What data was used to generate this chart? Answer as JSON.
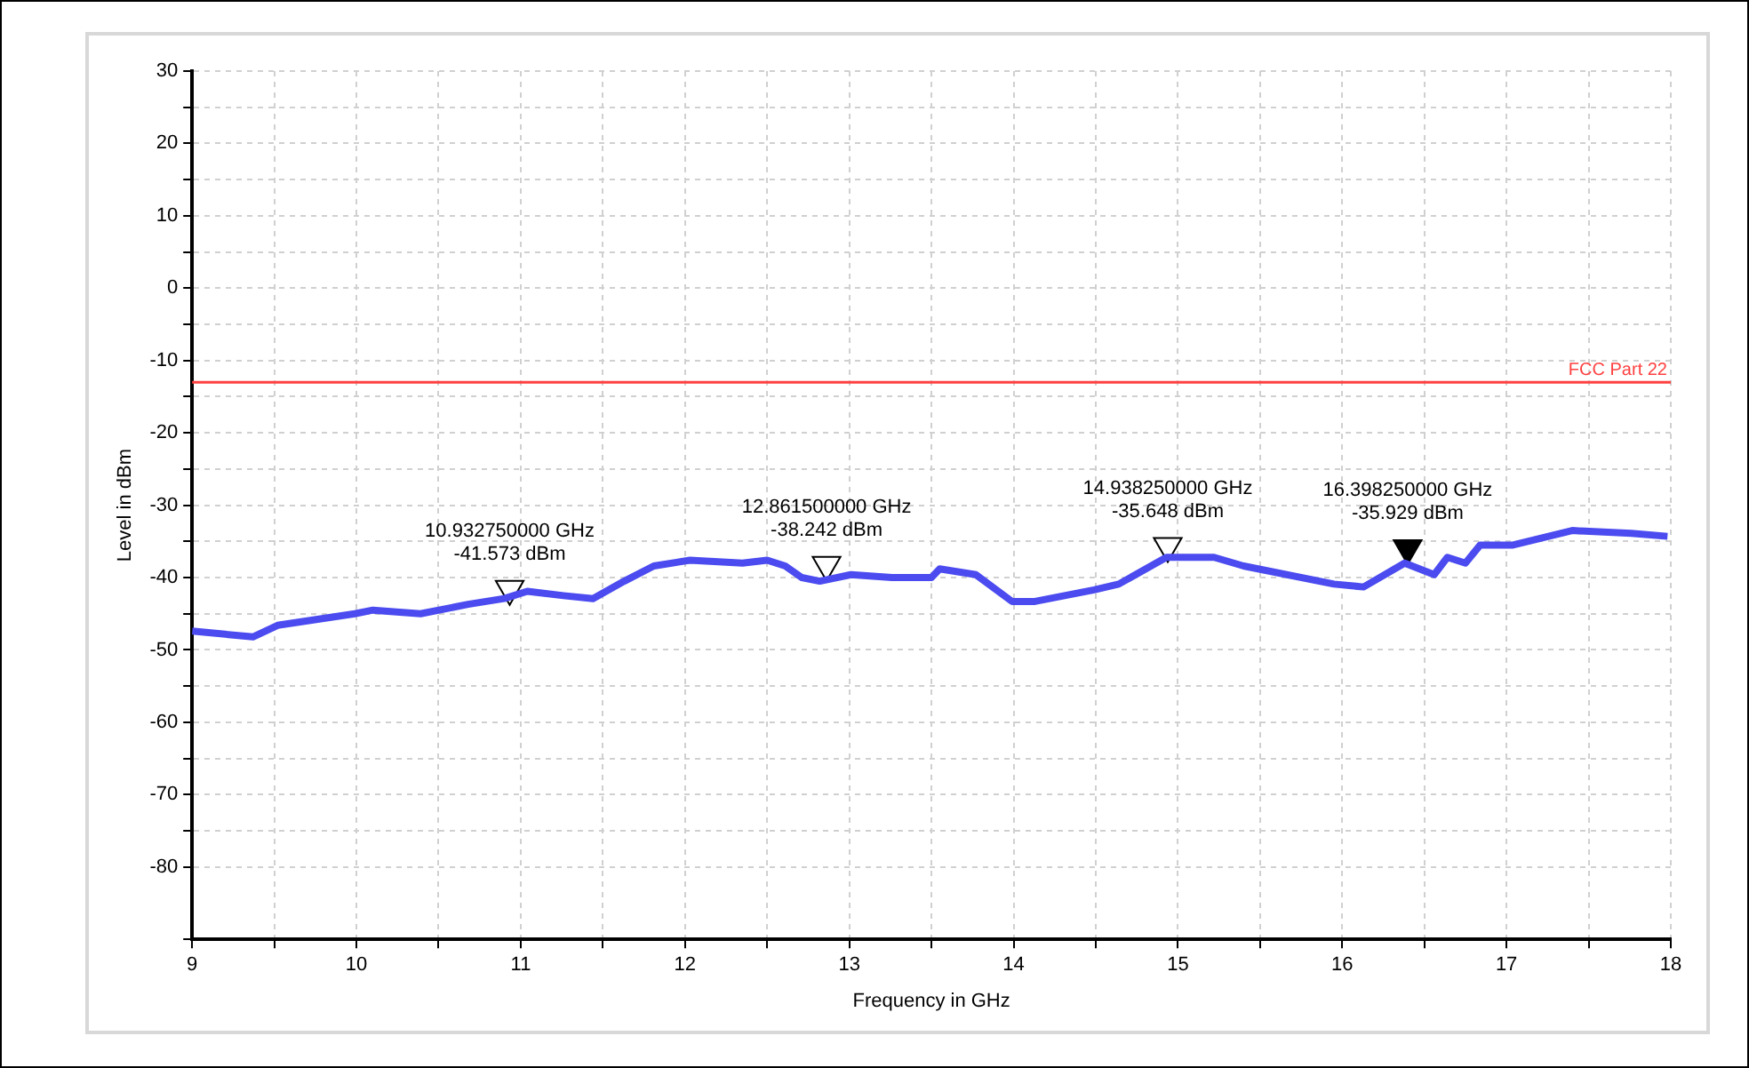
{
  "chart_data": {
    "type": "line",
    "xlabel": "Frequency in GHz",
    "ylabel": "Level in dBm",
    "xlim": [
      9,
      18
    ],
    "ylim": [
      -90,
      30
    ],
    "xticks": [
      9,
      {
        "value": 9.5,
        "label": null
      },
      10,
      {
        "value": 10.5,
        "label": null
      },
      11,
      {
        "value": 11.5,
        "label": null
      },
      12,
      {
        "value": 12.5,
        "label": null
      },
      13,
      {
        "value": 13.5,
        "label": null
      },
      14,
      {
        "value": 14.5,
        "label": null
      },
      15,
      {
        "value": 15.5,
        "label": null
      },
      16,
      {
        "value": 16.5,
        "label": null
      },
      17,
      {
        "value": 17.5,
        "label": null
      },
      18
    ],
    "yticks": [
      {
        "value": -90,
        "label": null
      },
      -80,
      {
        "value": -75,
        "label": null
      },
      -70,
      {
        "value": -65,
        "label": null
      },
      -60,
      {
        "value": -55,
        "label": null
      },
      -50,
      {
        "value": -45,
        "label": null
      },
      -40,
      {
        "value": -35,
        "label": null
      },
      -30,
      {
        "value": -25,
        "label": null
      },
      -20,
      {
        "value": -15,
        "label": null
      },
      -10,
      {
        "value": -5,
        "label": null
      },
      0,
      {
        "value": 5,
        "label": null
      },
      10,
      {
        "value": 15,
        "label": null
      },
      20,
      {
        "value": 25,
        "label": null
      },
      30
    ],
    "grid": true,
    "legend": false,
    "series": [
      {
        "color": "#4b4bf0",
        "marker": "none",
        "x": [
          9.0,
          9.37,
          9.52,
          9.99,
          10.1,
          10.39,
          10.68,
          10.9,
          11.04,
          11.26,
          11.44,
          11.63,
          11.81,
          12.03,
          12.35,
          12.5,
          12.61,
          12.71,
          12.82,
          13.01,
          13.26,
          13.5,
          13.55,
          13.77,
          13.99,
          14.13,
          14.49,
          14.64,
          14.93,
          15.22,
          15.4,
          15.95,
          16.13,
          16.38,
          16.56,
          16.64,
          16.75,
          16.84,
          17.04,
          17.4,
          17.76,
          17.98
        ],
        "values": [
          -47.4,
          -48.2,
          -46.6,
          -45.0,
          -44.5,
          -45.0,
          -43.7,
          -42.9,
          -41.9,
          -42.5,
          -42.9,
          -40.5,
          -38.4,
          -37.6,
          -38.0,
          -37.6,
          -38.4,
          -40.0,
          -40.5,
          -39.6,
          -40.0,
          -40.0,
          -38.8,
          -39.6,
          -43.3,
          -43.3,
          -41.7,
          -40.9,
          -37.2,
          -37.2,
          -38.4,
          -40.9,
          -41.3,
          -38.0,
          -39.6,
          -37.2,
          -38.0,
          -35.5,
          -35.5,
          -33.5,
          -33.9,
          -34.3
        ]
      },
      {
        "type": "scatter",
        "marker": "triangle",
        "x": [
          10.93275,
          12.8615,
          14.93825,
          16.39825
        ],
        "values": [
          -41.573,
          -38.242,
          -35.648,
          -35.929
        ],
        "colors": [
          "#ffffff",
          "#ffffff",
          "#ffffff",
          "#000000"
        ]
      }
    ],
    "ref_lines": [
      {
        "axis": "y",
        "value": -13,
        "label": "FCC Part 22",
        "color": "#ff4040"
      }
    ],
    "annotations": [
      {
        "text": "10.932750000 GHz\n-41.573 dBm",
        "x": 10.93275,
        "y": -41.573
      },
      {
        "text": "12.861500000 GHz\n-38.242 dBm",
        "x": 12.8615,
        "y": -38.242
      },
      {
        "text": "14.938250000 GHz\n-35.648 dBm",
        "x": 14.93825,
        "y": -35.648
      },
      {
        "text": "16.398250000 GHz\n-35.929 dBm",
        "x": 16.39825,
        "y": -35.929
      }
    ]
  }
}
